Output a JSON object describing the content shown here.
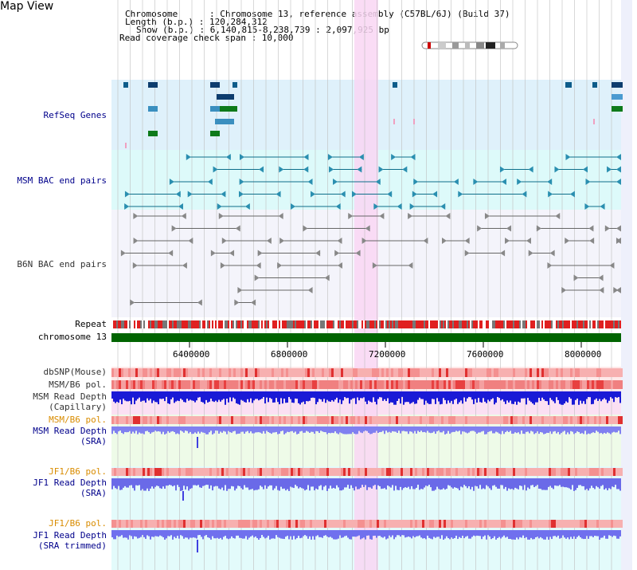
{
  "page_title": "Map View",
  "info": {
    "line1": "Chromosome      : Chromosome 13, reference assembly (C57BL/6J) (Build 37)",
    "line2": "Length (b.p.) : 120,284,312",
    "line3": "Show (b.p.) : 6,140,815-8,238,739 : 2,097,925 bp",
    "line4": "Read coverage check span : 10,000"
  },
  "tracks": {
    "refseq": "RefSeq Genes",
    "msm_bac": "MSM BAC end pairs",
    "b6n_bac": "B6N BAC end pairs",
    "repeat": "Repeat",
    "chromosome": "chromosome 13",
    "dbsnp": "dbSNP(Mouse)",
    "msm_b6_pol_1": "MSM/B6 pol.",
    "msm_depth_cap_1": "MSM Read Depth",
    "msm_depth_cap_2": "(Capillary)",
    "msm_b6_pol_2": "MSM/B6 pol.",
    "msm_depth_sra_1": "MSM Read Depth",
    "msm_depth_sra_2": "(SRA)",
    "jf1_b6_pol_1": "JF1/B6 pol.",
    "jf1_depth_sra_1": "JF1 Read Depth",
    "jf1_depth_sra_2": "(SRA)",
    "jf1_b6_pol_2": "JF1/B6 pol.",
    "jf1_depth_trim_1": "JF1 Read Depth",
    "jf1_depth_trim_2": "(SRA trimmed)"
  },
  "ruler": {
    "ticks": [
      "6400000",
      "6800000",
      "7200000",
      "7600000",
      "8000000"
    ]
  },
  "colors": {
    "refseq_bg": "#dff1fb",
    "msm_bac_bg": "#ddfafa",
    "b6n_bac_bg": "#f4f4fb",
    "highlight": "#f9d6f3",
    "chromosome_bar": "#006400",
    "repeat_red": "#e02020",
    "depth_blue": "#1a1ad6",
    "depth_light": "#8080f0"
  }
}
